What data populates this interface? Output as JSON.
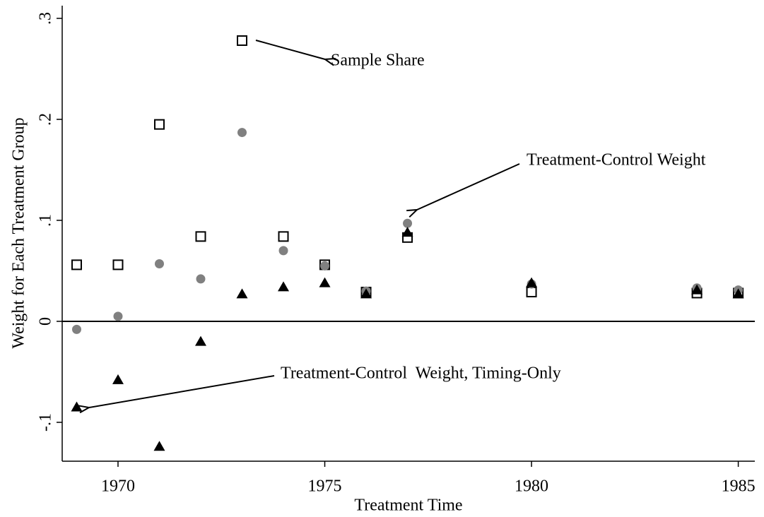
{
  "chart_data": {
    "type": "scatter",
    "x_label": "Treatment Time",
    "y_label": "Weight for Each Treatment Group",
    "x": [
      1969,
      1970,
      1971,
      1972,
      1973,
      1974,
      1975,
      1976,
      1977,
      1980,
      1984,
      1985
    ],
    "series": [
      {
        "name": "Sample Share",
        "marker": "square",
        "color": "#000000",
        "values": [
          0.056,
          0.056,
          0.195,
          0.084,
          0.278,
          0.084,
          0.056,
          0.029,
          0.083,
          0.029,
          0.028,
          0.028
        ]
      },
      {
        "name": "Treatment-Control Weight",
        "marker": "circle",
        "color": "#808080",
        "values": [
          -0.008,
          0.005,
          0.057,
          0.042,
          0.187,
          0.07,
          0.055,
          0.03,
          0.097,
          0.037,
          0.033,
          0.031
        ]
      },
      {
        "name": "Treatment-Control  Weight, Timing-Only",
        "marker": "triangle",
        "color": "#000000",
        "values": [
          -0.085,
          -0.058,
          -0.124,
          -0.02,
          0.027,
          0.034,
          0.038,
          0.027,
          0.088,
          0.038,
          0.031,
          0.027
        ]
      }
    ],
    "xlim": [
      1968.65,
      1985.4
    ],
    "ylim": [
      -0.1385,
      0.3126
    ],
    "xticks": [
      1970,
      1975,
      1980,
      1985
    ],
    "yticks": [
      {
        "value": -0.1,
        "label": "-.1"
      },
      0,
      {
        "value": 0.1,
        "label": ".1"
      },
      {
        "value": 0.2,
        "label": ".2"
      },
      {
        "value": 0.3,
        "label": ".3"
      }
    ],
    "yline": 0,
    "grid": false
  }
}
